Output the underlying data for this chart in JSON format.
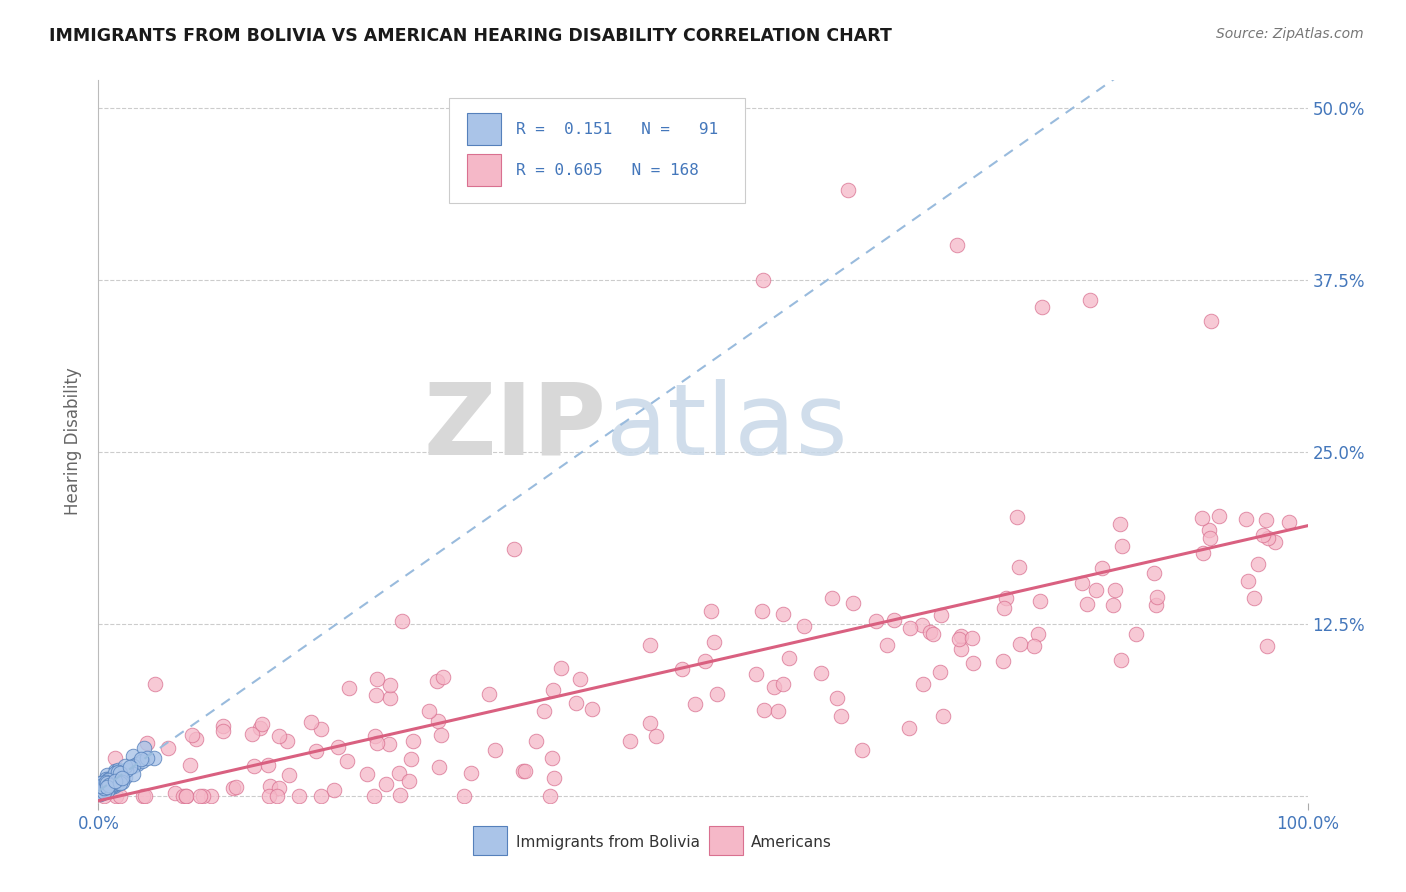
{
  "title": "IMMIGRANTS FROM BOLIVIA VS AMERICAN HEARING DISABILITY CORRELATION CHART",
  "source_text": "Source: ZipAtlas.com",
  "ylabel": "Hearing Disability",
  "watermark_part1": "ZIP",
  "watermark_part2": "atlas",
  "xlim": [
    0,
    1.0
  ],
  "ylim": [
    -0.005,
    0.52
  ],
  "yticks": [
    0.0,
    0.125,
    0.25,
    0.375,
    0.5
  ],
  "ytick_labels": [
    "",
    "12.5%",
    "25.0%",
    "37.5%",
    "50.0%"
  ],
  "xtick_labels": [
    "0.0%",
    "100.0%"
  ],
  "blue_color": "#aac4e8",
  "blue_edge": "#5580bb",
  "pink_color": "#f5b8c8",
  "pink_edge": "#d97090",
  "blue_line_color": "#99bbdd",
  "pink_line_color": "#d96080",
  "grid_color": "#cccccc",
  "title_color": "#1a1a1a",
  "axis_label_color": "#4477bb",
  "legend_text_color": "#4477bb",
  "source_color": "#777777",
  "ylabel_color": "#666666"
}
